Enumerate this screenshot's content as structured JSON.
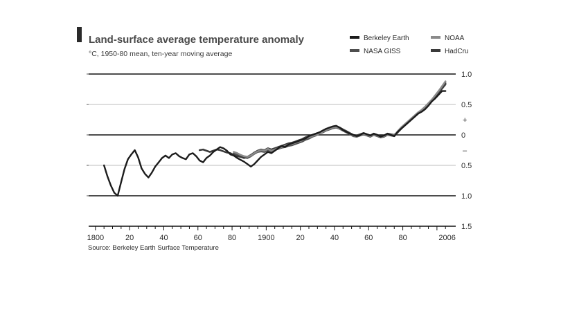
{
  "chart_data": {
    "type": "line",
    "title": "Land-surface average temperature anomaly",
    "subtitle": "°C, 1950-80 mean, ten-year moving average",
    "source": "Source: Berkeley Earth Surface Temperature",
    "x_tick_labels": [
      {
        "x": 1800,
        "label": "1800"
      },
      {
        "x": 1820,
        "label": "20"
      },
      {
        "x": 1840,
        "label": "40"
      },
      {
        "x": 1860,
        "label": "60"
      },
      {
        "x": 1880,
        "label": "80"
      },
      {
        "x": 1900,
        "label": "1900"
      },
      {
        "x": 1920,
        "label": "20"
      },
      {
        "x": 1940,
        "label": "40"
      },
      {
        "x": 1960,
        "label": "60"
      },
      {
        "x": 1980,
        "label": "80"
      },
      {
        "x": 2006,
        "label": "2006"
      }
    ],
    "y_tick_labels": [
      {
        "y": 1.0,
        "label": "1.0"
      },
      {
        "y": 0.5,
        "label": "0.5"
      },
      {
        "y": 0.25,
        "label": "+"
      },
      {
        "y": 0.0,
        "label": "0"
      },
      {
        "y": -0.25,
        "label": "–"
      },
      {
        "y": -0.5,
        "label": "0.5"
      },
      {
        "y": -1.0,
        "label": "1.0"
      },
      {
        "y": -1.5,
        "label": "1.5"
      }
    ],
    "xlim": [
      1796,
      2011
    ],
    "ylim": [
      -1.5,
      1.0
    ],
    "grid": true,
    "legend_position": "top-right",
    "series": [
      {
        "name": "Berkeley Earth",
        "color": "#1c1c1c",
        "x": [
          1805,
          1807,
          1809,
          1811,
          1813,
          1815,
          1817,
          1819,
          1821,
          1823,
          1825,
          1827,
          1829,
          1831,
          1833,
          1835,
          1837,
          1839,
          1841,
          1843,
          1845,
          1847,
          1849,
          1851,
          1853,
          1855,
          1857,
          1859,
          1861,
          1863,
          1865,
          1867,
          1869,
          1871,
          1873,
          1875,
          1877,
          1879,
          1881,
          1883,
          1885,
          1887,
          1889,
          1891,
          1893,
          1895,
          1897,
          1899,
          1901,
          1903,
          1905,
          1907,
          1909,
          1911,
          1913,
          1915,
          1917,
          1919,
          1921,
          1923,
          1925,
          1927,
          1929,
          1931,
          1933,
          1935,
          1937,
          1939,
          1941,
          1943,
          1945,
          1947,
          1949,
          1951,
          1953,
          1955,
          1957,
          1959,
          1961,
          1963,
          1965,
          1967,
          1969,
          1971,
          1973,
          1975,
          1977,
          1979,
          1981,
          1983,
          1985,
          1987,
          1989,
          1991,
          1993,
          1995,
          1997,
          1999,
          2001,
          2003,
          2005
        ],
        "y": [
          -0.5,
          -0.68,
          -0.83,
          -0.95,
          -1.0,
          -0.78,
          -0.56,
          -0.4,
          -0.32,
          -0.25,
          -0.37,
          -0.55,
          -0.64,
          -0.7,
          -0.62,
          -0.52,
          -0.45,
          -0.38,
          -0.34,
          -0.38,
          -0.32,
          -0.3,
          -0.35,
          -0.38,
          -0.4,
          -0.32,
          -0.3,
          -0.35,
          -0.42,
          -0.45,
          -0.38,
          -0.34,
          -0.28,
          -0.24,
          -0.2,
          -0.22,
          -0.26,
          -0.32,
          -0.34,
          -0.38,
          -0.41,
          -0.44,
          -0.48,
          -0.52,
          -0.48,
          -0.42,
          -0.36,
          -0.32,
          -0.28,
          -0.3,
          -0.26,
          -0.22,
          -0.18,
          -0.2,
          -0.16,
          -0.14,
          -0.12,
          -0.1,
          -0.08,
          -0.06,
          -0.02,
          0.0,
          0.02,
          0.04,
          0.07,
          0.1,
          0.12,
          0.14,
          0.15,
          0.12,
          0.08,
          0.05,
          0.02,
          0.0,
          -0.02,
          0.0,
          0.03,
          0.01,
          -0.01,
          0.02,
          0.0,
          -0.03,
          -0.01,
          0.02,
          0.0,
          -0.02,
          0.05,
          0.1,
          0.15,
          0.2,
          0.25,
          0.3,
          0.35,
          0.38,
          0.42,
          0.48,
          0.55,
          0.6,
          0.66,
          0.72,
          0.72
        ]
      },
      {
        "name": "NOAA",
        "color": "#8a8a8a",
        "x": [
          1881,
          1883,
          1885,
          1887,
          1889,
          1891,
          1893,
          1895,
          1897,
          1899,
          1901,
          1903,
          1905,
          1907,
          1909,
          1911,
          1913,
          1915,
          1917,
          1919,
          1921,
          1923,
          1925,
          1927,
          1929,
          1931,
          1933,
          1935,
          1937,
          1939,
          1941,
          1943,
          1945,
          1947,
          1949,
          1951,
          1953,
          1955,
          1957,
          1959,
          1961,
          1963,
          1965,
          1967,
          1969,
          1971,
          1973,
          1975,
          1977,
          1979,
          1981,
          1983,
          1985,
          1987,
          1989,
          1991,
          1993,
          1995,
          1997,
          1999,
          2001,
          2003,
          2005
        ],
        "y": [
          -0.28,
          -0.3,
          -0.33,
          -0.35,
          -0.36,
          -0.34,
          -0.3,
          -0.27,
          -0.25,
          -0.26,
          -0.23,
          -0.26,
          -0.24,
          -0.22,
          -0.2,
          -0.18,
          -0.16,
          -0.15,
          -0.13,
          -0.11,
          -0.09,
          -0.06,
          -0.04,
          -0.02,
          0.0,
          0.02,
          0.05,
          0.08,
          0.1,
          0.12,
          0.13,
          0.11,
          0.08,
          0.05,
          0.02,
          -0.01,
          -0.02,
          0.0,
          0.02,
          0.0,
          -0.02,
          0.01,
          -0.01,
          -0.03,
          -0.02,
          0.01,
          0.0,
          -0.01,
          0.06,
          0.12,
          0.17,
          0.22,
          0.27,
          0.32,
          0.37,
          0.41,
          0.46,
          0.52,
          0.58,
          0.65,
          0.72,
          0.8,
          0.88
        ]
      },
      {
        "name": "NASA GISS",
        "color": "#4e4e4e",
        "x": [
          1881,
          1883,
          1885,
          1887,
          1889,
          1891,
          1893,
          1895,
          1897,
          1899,
          1901,
          1903,
          1905,
          1907,
          1909,
          1911,
          1913,
          1915,
          1917,
          1919,
          1921,
          1923,
          1925,
          1927,
          1929,
          1931,
          1933,
          1935,
          1937,
          1939,
          1941,
          1943,
          1945,
          1947,
          1949,
          1951,
          1953,
          1955,
          1957,
          1959,
          1961,
          1963,
          1965,
          1967,
          1969,
          1971,
          1973,
          1975,
          1977,
          1979,
          1981,
          1983,
          1985,
          1987,
          1989,
          1991,
          1993,
          1995,
          1997,
          1999,
          2001,
          2003,
          2005
        ],
        "y": [
          -0.3,
          -0.32,
          -0.35,
          -0.37,
          -0.38,
          -0.35,
          -0.31,
          -0.28,
          -0.27,
          -0.28,
          -0.25,
          -0.27,
          -0.25,
          -0.23,
          -0.21,
          -0.2,
          -0.18,
          -0.17,
          -0.15,
          -0.13,
          -0.11,
          -0.08,
          -0.06,
          -0.03,
          -0.01,
          0.02,
          0.04,
          0.07,
          0.09,
          0.11,
          0.12,
          0.1,
          0.07,
          0.04,
          0.01,
          -0.02,
          -0.03,
          -0.01,
          0.01,
          -0.01,
          -0.03,
          0.0,
          -0.02,
          -0.04,
          -0.03,
          0.0,
          -0.01,
          -0.02,
          0.04,
          0.1,
          0.15,
          0.2,
          0.25,
          0.3,
          0.35,
          0.39,
          0.44,
          0.5,
          0.56,
          0.62,
          0.69,
          0.76,
          0.83
        ]
      },
      {
        "name": "HadCru",
        "color": "#3a3a3a",
        "x": [
          1861,
          1863,
          1865,
          1867,
          1869,
          1871,
          1873,
          1875,
          1877,
          1879,
          1881,
          1883,
          1885,
          1887,
          1889,
          1891,
          1893,
          1895,
          1897,
          1899,
          1901,
          1903,
          1905,
          1907,
          1909,
          1911,
          1913,
          1915,
          1917,
          1919,
          1921,
          1923,
          1925,
          1927,
          1929,
          1931,
          1933,
          1935,
          1937,
          1939,
          1941,
          1943,
          1945,
          1947,
          1949,
          1951,
          1953,
          1955,
          1957,
          1959,
          1961,
          1963,
          1965,
          1967,
          1969,
          1971,
          1973,
          1975,
          1977,
          1979,
          1981,
          1983,
          1985,
          1987,
          1989,
          1991,
          1993,
          1995,
          1997,
          1999,
          2001,
          2003,
          2005
        ],
        "y": [
          -0.25,
          -0.24,
          -0.26,
          -0.28,
          -0.26,
          -0.24,
          -0.25,
          -0.27,
          -0.29,
          -0.3,
          -0.33,
          -0.35,
          -0.36,
          -0.38,
          -0.36,
          -0.33,
          -0.29,
          -0.26,
          -0.24,
          -0.25,
          -0.22,
          -0.24,
          -0.22,
          -0.2,
          -0.18,
          -0.16,
          -0.14,
          -0.13,
          -0.11,
          -0.09,
          -0.07,
          -0.04,
          -0.02,
          0.0,
          0.02,
          0.04,
          0.06,
          0.09,
          0.11,
          0.13,
          0.14,
          0.12,
          0.09,
          0.06,
          0.03,
          0.0,
          -0.01,
          0.01,
          0.03,
          0.01,
          -0.01,
          0.02,
          0.0,
          -0.02,
          -0.01,
          0.02,
          0.01,
          0.0,
          0.05,
          0.11,
          0.16,
          0.21,
          0.26,
          0.31,
          0.36,
          0.4,
          0.45,
          0.51,
          0.57,
          0.63,
          0.7,
          0.77,
          0.85
        ]
      }
    ]
  }
}
